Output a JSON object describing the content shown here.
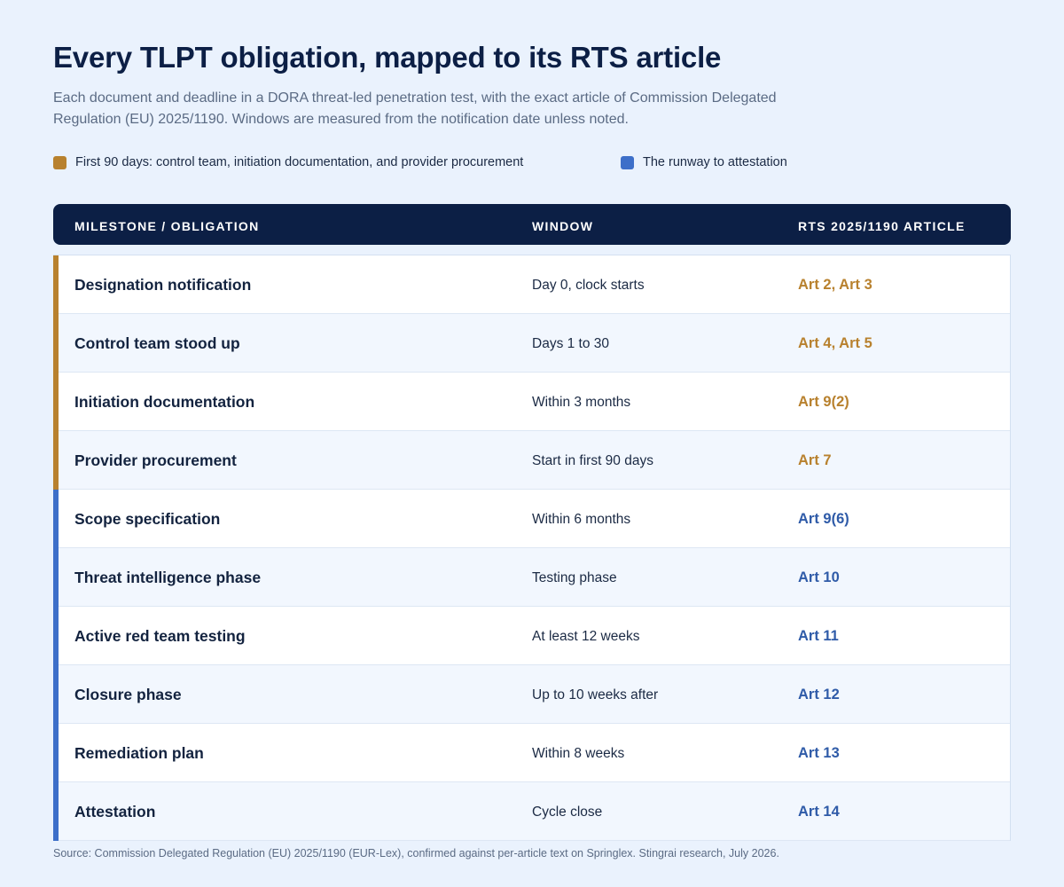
{
  "title": "Every TLPT obligation, mapped to its RTS article",
  "subtitle": "Each document and deadline in a DORA threat-led penetration test, with the exact article of Commission Delegated Regulation (EU) 2025/1190. Windows are measured from the notification date unless noted.",
  "legend": [
    {
      "label": "First 90 days: control team, initiation documentation, and provider procurement",
      "color": "#b8812e"
    },
    {
      "label": "The runway to attestation",
      "color": "#3d6fc9"
    }
  ],
  "table": {
    "headers": [
      "MILESTONE / OBLIGATION",
      "WINDOW",
      "RTS 2025/1190 ARTICLE"
    ],
    "rows": [
      {
        "milestone": "Designation notification",
        "window": "Day 0, clock starts",
        "article": "Art 2, Art 3",
        "group": 0
      },
      {
        "milestone": "Control team stood up",
        "window": "Days 1 to 30",
        "article": "Art 4, Art 5",
        "group": 0
      },
      {
        "milestone": "Initiation documentation",
        "window": "Within 3 months",
        "article": "Art 9(2)",
        "group": 0
      },
      {
        "milestone": "Provider procurement",
        "window": "Start in first 90 days",
        "article": "Art 7",
        "group": 0
      },
      {
        "milestone": "Scope specification",
        "window": "Within 6 months",
        "article": "Art 9(6)",
        "group": 1
      },
      {
        "milestone": "Threat intelligence phase",
        "window": "Testing phase",
        "article": "Art 10",
        "group": 1
      },
      {
        "milestone": "Active red team testing",
        "window": "At least 12 weeks",
        "article": "Art 11",
        "group": 1
      },
      {
        "milestone": "Closure phase",
        "window": "Up to 10 weeks after",
        "article": "Art 12",
        "group": 1
      },
      {
        "milestone": "Remediation plan",
        "window": "Within 8 weeks",
        "article": "Art 13",
        "group": 1
      },
      {
        "milestone": "Attestation",
        "window": "Cycle close",
        "article": "Art 14",
        "group": 1
      }
    ]
  },
  "colors": {
    "group_bar": [
      "#b8812e",
      "#3d6fc9"
    ],
    "group_text": [
      "#b8812e",
      "#2f5ba8"
    ]
  },
  "source": "Source: Commission Delegated Regulation (EU) 2025/1190 (EUR-Lex), confirmed against per-article text on Springlex. Stingrai research, July 2026."
}
